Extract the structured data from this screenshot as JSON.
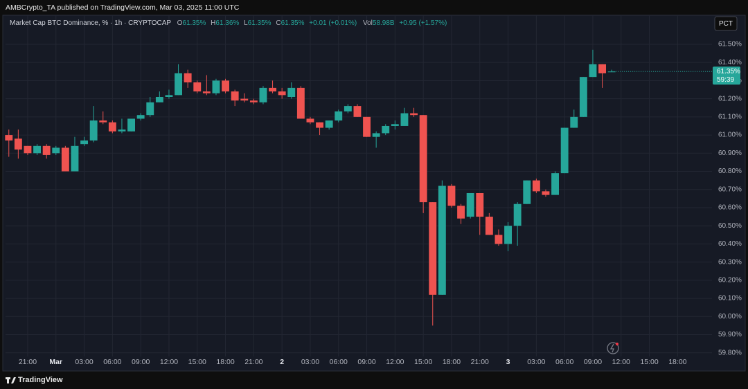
{
  "header": {
    "publisher": "AMBCrypto_TA published on TradingView.com, Mar 03, 2025 11:00 UTC"
  },
  "footer": {
    "brand": "TradingView"
  },
  "chart_data": {
    "type": "candlestick",
    "title": "Market Cap BTC Dominance, % · 1h · CRYPTOCAP",
    "legend": [
      {
        "key": "O",
        "value": "61.35%"
      },
      {
        "key": "H",
        "value": "61.36%"
      },
      {
        "key": "L",
        "value": "61.35%"
      },
      {
        "key": "C",
        "value": "61.35%"
      }
    ],
    "change": "+0.01 (+0.01%)",
    "volume": {
      "key": "Vol",
      "value": "58.98B",
      "change": "+0.95 (+1.57%)"
    },
    "scale_button": "PCT",
    "up_color": "#26a69a",
    "down_color": "#ef5350",
    "grid": true,
    "x": [
      -2,
      -1,
      0,
      1,
      2,
      3,
      4,
      5,
      6,
      7,
      8,
      9,
      10,
      11,
      12,
      13,
      14,
      15,
      16,
      17,
      18,
      19,
      20,
      21,
      22,
      23,
      24,
      25,
      26,
      27,
      28,
      29,
      30,
      31,
      32,
      33,
      34,
      35,
      36,
      37,
      38,
      39,
      40,
      41,
      42,
      43,
      44,
      45,
      46,
      47,
      48,
      49,
      50,
      51,
      52,
      53,
      54,
      55,
      56,
      57,
      58,
      59,
      60,
      61,
      62
    ],
    "open": [
      61.0,
      60.98,
      60.94,
      60.9,
      60.94,
      60.9,
      60.93,
      60.8,
      60.95,
      60.97,
      61.08,
      61.07,
      61.02,
      61.02,
      61.09,
      61.11,
      61.18,
      61.21,
      61.22,
      61.34,
      61.29,
      61.24,
      61.23,
      61.3,
      61.24,
      61.2,
      61.19,
      61.18,
      61.26,
      61.24,
      61.21,
      61.26,
      61.09,
      61.07,
      61.04,
      61.08,
      61.13,
      61.16,
      61.1,
      60.99,
      61.01,
      61.05,
      61.05,
      61.12,
      61.11,
      60.63,
      60.12,
      60.72,
      60.61,
      60.55,
      60.68,
      60.55,
      60.45,
      60.4,
      60.5,
      60.62,
      60.75,
      60.69,
      60.67,
      60.79,
      61.04,
      61.1,
      61.32,
      61.39,
      61.35
    ],
    "high": [
      61.03,
      61.03,
      60.94,
      60.95,
      60.95,
      60.94,
      60.94,
      60.99,
      60.99,
      61.16,
      61.13,
      61.08,
      61.09,
      61.09,
      61.12,
      61.21,
      61.24,
      61.25,
      61.39,
      61.36,
      61.3,
      61.33,
      61.31,
      61.31,
      61.25,
      61.23,
      61.2,
      61.27,
      61.3,
      61.26,
      61.29,
      61.27,
      61.1,
      61.07,
      61.08,
      61.14,
      61.17,
      61.17,
      61.1,
      61.02,
      61.06,
      61.08,
      61.15,
      61.15,
      61.11,
      60.63,
      60.75,
      60.73,
      60.62,
      60.68,
      60.68,
      60.57,
      60.48,
      60.52,
      60.63,
      60.75,
      60.76,
      60.7,
      60.8,
      61.04,
      61.14,
      61.32,
      61.47,
      61.39,
      61.36
    ],
    "low": [
      60.88,
      60.87,
      60.89,
      60.89,
      60.87,
      60.89,
      60.8,
      60.8,
      60.94,
      60.96,
      61.06,
      61.01,
      61.01,
      61.02,
      61.08,
      61.1,
      61.18,
      61.2,
      61.22,
      61.26,
      61.23,
      61.22,
      61.22,
      61.23,
      61.16,
      61.18,
      61.17,
      61.17,
      61.23,
      61.2,
      61.2,
      61.09,
      61.06,
      61.0,
      61.03,
      61.07,
      61.12,
      61.1,
      60.99,
      60.93,
      61.0,
      61.03,
      61.05,
      61.1,
      60.57,
      59.95,
      60.12,
      60.6,
      60.51,
      60.54,
      60.45,
      60.45,
      60.39,
      60.36,
      60.39,
      60.62,
      60.68,
      60.66,
      60.67,
      60.79,
      61.04,
      61.1,
      61.32,
      61.26,
      61.35
    ],
    "close": [
      60.97,
      60.92,
      60.9,
      60.94,
      60.89,
      60.93,
      60.8,
      60.94,
      60.97,
      61.08,
      61.07,
      61.02,
      61.03,
      61.09,
      61.11,
      61.18,
      61.21,
      61.22,
      61.34,
      61.29,
      61.24,
      61.23,
      61.3,
      61.24,
      61.19,
      61.19,
      61.18,
      61.26,
      61.24,
      61.22,
      61.26,
      61.09,
      61.07,
      61.04,
      61.08,
      61.13,
      61.16,
      61.1,
      60.99,
      61.01,
      61.05,
      61.06,
      61.12,
      61.11,
      60.63,
      60.12,
      60.72,
      60.61,
      60.54,
      60.68,
      60.55,
      60.45,
      60.4,
      60.5,
      60.62,
      60.75,
      60.69,
      60.67,
      60.79,
      61.04,
      61.1,
      61.32,
      61.39,
      61.34,
      61.35
    ],
    "xlim": [
      -2.35,
      72.65
    ],
    "xticks": [
      {
        "value": 0,
        "label": "21:00"
      },
      {
        "value": 3,
        "label": "Mar"
      },
      {
        "value": 6,
        "label": "03:00"
      },
      {
        "value": 9,
        "label": "06:00"
      },
      {
        "value": 12,
        "label": "09:00"
      },
      {
        "value": 15,
        "label": "12:00"
      },
      {
        "value": 18,
        "label": "15:00"
      },
      {
        "value": 21,
        "label": "18:00"
      },
      {
        "value": 24,
        "label": "21:00"
      },
      {
        "value": 27,
        "label": "2"
      },
      {
        "value": 30,
        "label": "03:00"
      },
      {
        "value": 33,
        "label": "06:00"
      },
      {
        "value": 36,
        "label": "09:00"
      },
      {
        "value": 39,
        "label": "12:00"
      },
      {
        "value": 42,
        "label": "15:00"
      },
      {
        "value": 45,
        "label": "18:00"
      },
      {
        "value": 48,
        "label": "21:00"
      },
      {
        "value": 51,
        "label": "3"
      },
      {
        "value": 54,
        "label": "03:00"
      },
      {
        "value": 57,
        "label": "06:00"
      },
      {
        "value": 60,
        "label": "09:00"
      },
      {
        "value": 63,
        "label": "12:00"
      },
      {
        "value": 66,
        "label": "15:00"
      },
      {
        "value": 69,
        "label": "18:00"
      }
    ],
    "ylim": [
      59.78,
      61.66
    ],
    "yticks": [
      {
        "value": 59.8,
        "label": "59.80%"
      },
      {
        "value": 59.9,
        "label": "59.90%"
      },
      {
        "value": 60.0,
        "label": "60.00%"
      },
      {
        "value": 60.1,
        "label": "60.10%"
      },
      {
        "value": 60.2,
        "label": "60.20%"
      },
      {
        "value": 60.3,
        "label": "60.30%"
      },
      {
        "value": 60.4,
        "label": "60.40%"
      },
      {
        "value": 60.5,
        "label": "60.50%"
      },
      {
        "value": 60.6,
        "label": "60.60%"
      },
      {
        "value": 60.7,
        "label": "60.70%"
      },
      {
        "value": 60.8,
        "label": "60.80%"
      },
      {
        "value": 60.9,
        "label": "60.90%"
      },
      {
        "value": 61.0,
        "label": "61.00%"
      },
      {
        "value": 61.1,
        "label": "61.10%"
      },
      {
        "value": 61.2,
        "label": "61.20%"
      },
      {
        "value": 61.3,
        "label": "61.30%"
      },
      {
        "value": 61.4,
        "label": "61.40%"
      },
      {
        "value": 61.5,
        "label": "61.50%"
      }
    ],
    "last_price": {
      "value": 61.35,
      "label": "61.35%"
    },
    "countdown": "59:39"
  }
}
